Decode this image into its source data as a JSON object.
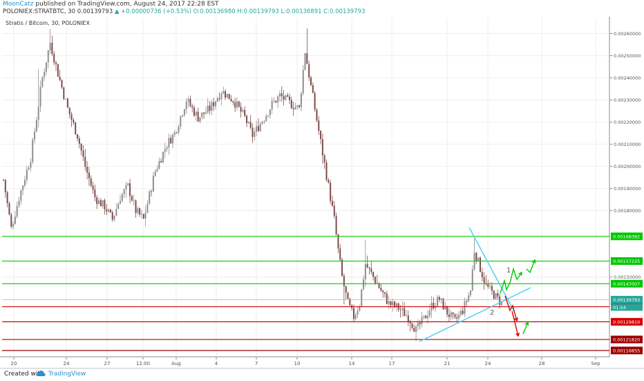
{
  "header": {
    "author": "MoonCatz",
    "published": "published on TradingView.com, August 24, 2017 22:28 EST",
    "symbol_line": "POLONIEX:STRATBTC, 30  0.00139793",
    "change": "▲ +0.00000736 (+0.53%)",
    "ohlc": "O:0.00136980 H:0.00139793 L:0.00136891 C:0.00139793"
  },
  "chart_data": {
    "type": "candlestick",
    "title": "Stratis / Bitcoin, 30, POLONIEX",
    "x_ticks": [
      "20",
      "24",
      "27",
      "12:00",
      "Aug",
      "4",
      "7",
      "10",
      "14",
      "17",
      "21",
      "24",
      "28",
      "Sep"
    ],
    "y_ticks": [
      "0.00260000",
      "0.00250000",
      "0.00240000",
      "0.00230000",
      "0.00220000",
      "0.00210000",
      "0.00200000",
      "0.00190000",
      "0.00180000",
      "0.00150000"
    ],
    "ylim": [
      0.00114,
      0.00267
    ],
    "approximate_price_path": [
      [
        0,
        0.00194
      ],
      [
        4,
        0.00172
      ],
      [
        8,
        0.00186
      ],
      [
        14,
        0.00204
      ],
      [
        20,
        0.0024
      ],
      [
        24,
        0.00256
      ],
      [
        28,
        0.00242
      ],
      [
        33,
        0.00226
      ],
      [
        38,
        0.00214
      ],
      [
        42,
        0.002
      ],
      [
        47,
        0.00186
      ],
      [
        49,
        0.00184
      ],
      [
        52,
        0.00182
      ],
      [
        56,
        0.00176
      ],
      [
        60,
        0.00186
      ],
      [
        64,
        0.00191
      ],
      [
        68,
        0.0018
      ],
      [
        72,
        0.00176
      ],
      [
        78,
        0.00198
      ],
      [
        84,
        0.0021
      ],
      [
        88,
        0.00215
      ],
      [
        94,
        0.0023
      ],
      [
        100,
        0.00222
      ],
      [
        106,
        0.00226
      ],
      [
        112,
        0.00234
      ],
      [
        118,
        0.0023
      ],
      [
        124,
        0.00222
      ],
      [
        128,
        0.00214
      ],
      [
        134,
        0.00222
      ],
      [
        138,
        0.00228
      ],
      [
        142,
        0.00232
      ],
      [
        148,
        0.00228
      ],
      [
        152,
        0.00226
      ],
      [
        155,
        0.00252
      ],
      [
        158,
        0.00236
      ],
      [
        162,
        0.00216
      ],
      [
        166,
        0.00196
      ],
      [
        170,
        0.00176
      ],
      [
        172,
        0.00162
      ],
      [
        174,
        0.0015
      ],
      [
        177,
        0.00138
      ],
      [
        180,
        0.00132
      ],
      [
        183,
        0.00138
      ],
      [
        186,
        0.00156
      ],
      [
        190,
        0.0015
      ],
      [
        194,
        0.00144
      ],
      [
        198,
        0.00138
      ],
      [
        203,
        0.00136
      ],
      [
        208,
        0.00132
      ],
      [
        212,
        0.00126
      ],
      [
        216,
        0.00131
      ],
      [
        220,
        0.00137
      ],
      [
        224,
        0.0014
      ],
      [
        228,
        0.00134
      ],
      [
        232,
        0.0013
      ],
      [
        236,
        0.00135
      ],
      [
        240,
        0.00144
      ],
      [
        242,
        0.00162
      ],
      [
        245,
        0.00154
      ],
      [
        248,
        0.00146
      ],
      [
        252,
        0.00142
      ],
      [
        256,
        0.00138
      ]
    ],
    "horizontal_lines": [
      {
        "price": 0.00168382,
        "label": "0.00168382",
        "color": "#00c800"
      },
      {
        "price": 0.00157225,
        "label": "0.00157225",
        "color": "#00c800"
      },
      {
        "price": 0.00147007,
        "label": "0.00147007",
        "color": "#00c800"
      },
      {
        "price": 0.00136625,
        "label": "0.00136625",
        "color": "#d60000"
      },
      {
        "price": 0.0012981,
        "label": "0.00129810",
        "color": "#d60000"
      },
      {
        "price": 0.0012182,
        "label": "0.00121820",
        "color": "#a00000"
      },
      {
        "price": 0.00116855,
        "label": "0.00116855",
        "color": "#a00000"
      }
    ],
    "last_price": {
      "label": "0.00139793",
      "price": 0.00139793,
      "color": "#26a69a"
    },
    "countdown": {
      "label": "01:54",
      "color": "#26a69a"
    },
    "scenario_labels": [
      "1",
      "2"
    ],
    "annotation_colors": {
      "trendline": "#4dd0f2",
      "bull": "#00c800",
      "bear": "#d60000"
    }
  },
  "footer": {
    "created_with": "Created with",
    "brand": "TradingView"
  },
  "colors": {
    "candle_up": "#8d8d8d",
    "candle_down": "#7d4a4a",
    "grid": "#eeeeee"
  }
}
